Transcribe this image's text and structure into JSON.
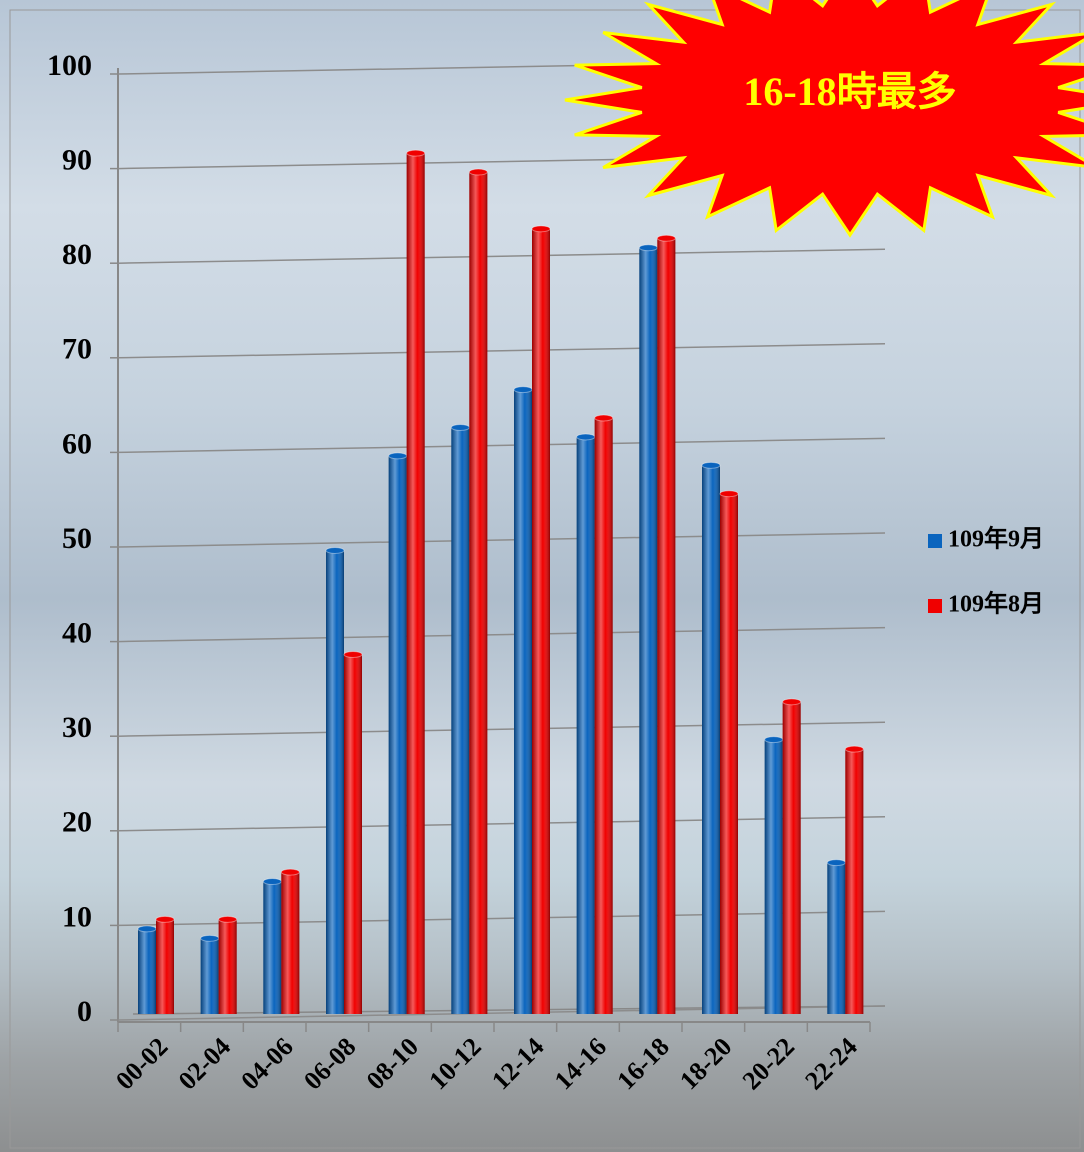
{
  "chart_data": {
    "type": "bar",
    "annotation": "16-18時最多",
    "categories": [
      "00-02",
      "02-04",
      "04-06",
      "06-08",
      "08-10",
      "10-12",
      "12-14",
      "14-16",
      "16-18",
      "18-20",
      "20-22",
      "22-24"
    ],
    "series": [
      {
        "name": "109年9月",
        "color": "#0a64be",
        "values": [
          9,
          8,
          14,
          49,
          59,
          62,
          66,
          61,
          81,
          58,
          29,
          16
        ]
      },
      {
        "name": "109年8月",
        "color": "#f00000",
        "values": [
          10,
          10,
          15,
          38,
          91,
          89,
          83,
          63,
          82,
          55,
          33,
          28
        ]
      }
    ],
    "ylim": [
      0,
      100
    ],
    "yticks": [
      0,
      10,
      20,
      30,
      40,
      50,
      60,
      70,
      80,
      90,
      100
    ],
    "grid": true,
    "legend": "right"
  }
}
